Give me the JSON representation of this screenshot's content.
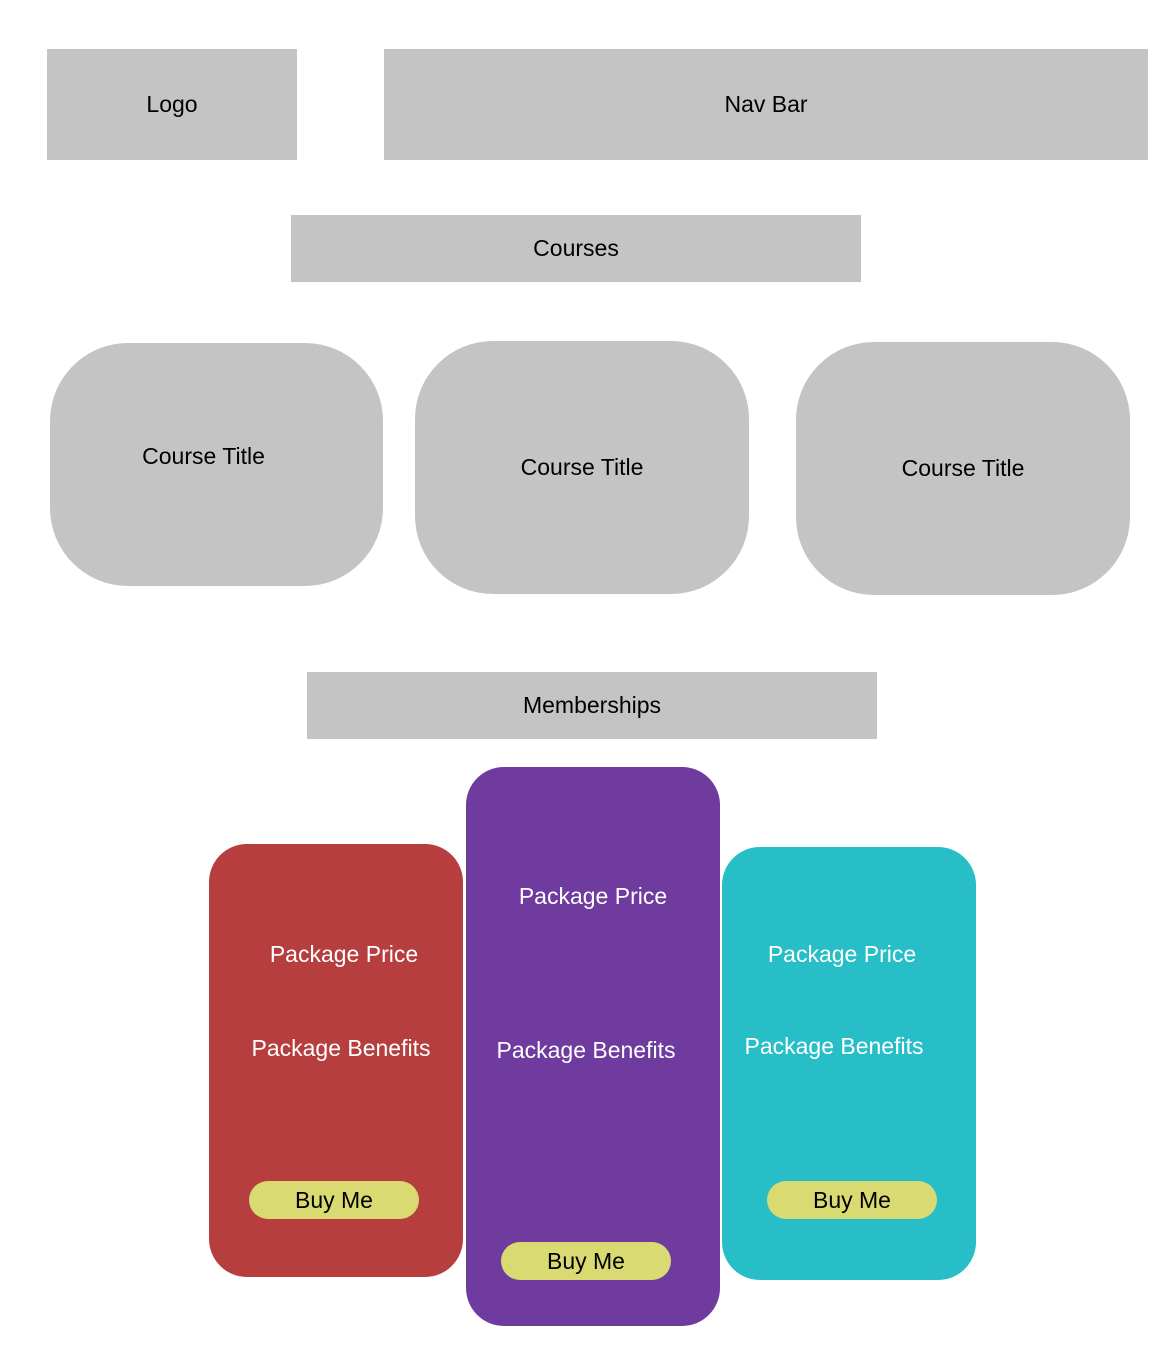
{
  "header": {
    "logo_label": "Logo",
    "nav_label": "Nav Bar"
  },
  "courses": {
    "heading": "Courses",
    "cards": [
      {
        "title": "Course Title"
      },
      {
        "title": "Course Title"
      },
      {
        "title": "Course Title"
      }
    ]
  },
  "memberships": {
    "heading": "Memberships",
    "packages": [
      {
        "price": "Package Price",
        "benefits": "Package Benefits",
        "button": "Buy Me",
        "color": "#b73e3f"
      },
      {
        "price": "Package Price",
        "benefits": "Package Benefits",
        "button": "Buy Me",
        "color": "#6f3b9f"
      },
      {
        "price": "Package Price",
        "benefits": "Package Benefits",
        "button": "Buy Me",
        "color": "#27bec7"
      }
    ],
    "button_color": "#d9da72"
  },
  "colors": {
    "placeholder_gray": "#c4c4c4",
    "background": "#ffffff"
  }
}
